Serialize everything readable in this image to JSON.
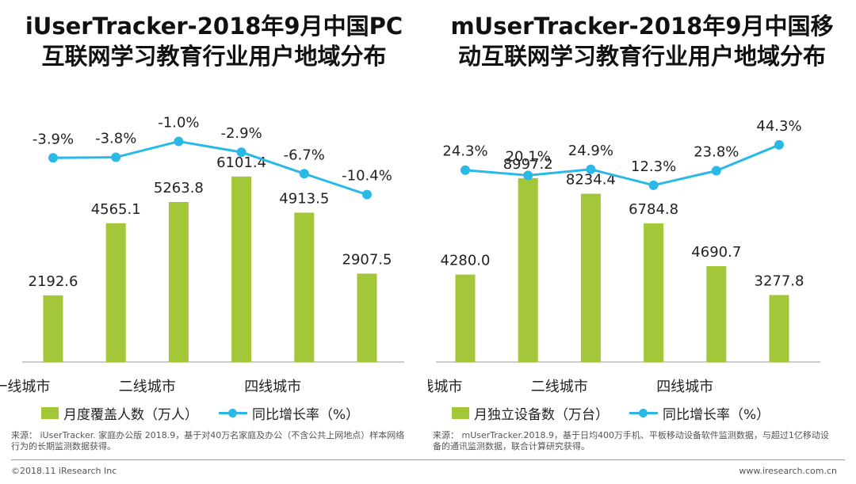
{
  "colors": {
    "bar": "#a4c639",
    "line": "#2ab9e6",
    "text": "#222222"
  },
  "panels": [
    {
      "title_line1": "iUserTracker-2018年9月中国PC",
      "title_line2": "互联网学习教育行业用户地域分布",
      "legend_bar": "月度覆盖人数（万人）",
      "legend_line": "同比增长率（%）",
      "source": "来源：  iUserTracker. 家庭办公版 2018.9，基于对40万名家庭及办公（不含公共上网地点）样本网络行为的长期监测数据获得。"
    },
    {
      "title_line1": "mUserTracker-2018年9月中国移",
      "title_line2": "动互联网学习教育行业用户地域分布",
      "legend_bar": "月独立设备数（万台）",
      "legend_line": "同比增长率（%）",
      "source": "来源：  mUserTracker.2018.9，基于日均400万手机、平板移动设备软件监测数据，与超过1亿移动设备的通讯监测数据，联合计算研究获得。"
    }
  ],
  "chart_data": [
    {
      "type": "bar",
      "title": "iUserTracker-2018年9月中国PC互联网学习教育行业用户地域分布",
      "categories": [
        "一线城市",
        "",
        "二线城市",
        "",
        "四线城市",
        ""
      ],
      "series": [
        {
          "name": "月度覆盖人数（万人）",
          "type": "bar",
          "values": [
            2192.6,
            4565.1,
            5263.8,
            6101.4,
            4913.5,
            2907.5
          ],
          "labels": [
            "2192.6",
            "4565.1",
            "5263.8",
            "6101.4",
            "4913.5",
            "2907.5"
          ]
        },
        {
          "name": "同比增长率（%）",
          "type": "line",
          "values": [
            -3.9,
            -3.8,
            -1.0,
            -2.9,
            -6.7,
            -10.4
          ],
          "labels": [
            "-3.9%",
            "-3.8%",
            "-1.0%",
            "-2.9%",
            "-6.7%",
            "-10.4%"
          ]
        }
      ],
      "bar_ylim": [
        0,
        8000
      ],
      "line_ylim": [
        -40,
        3
      ]
    },
    {
      "type": "bar",
      "title": "mUserTracker-2018年9月中国移动互联网学习教育行业用户地域分布",
      "categories": [
        "一线城市",
        "",
        "二线城市",
        "",
        "四线城市",
        ""
      ],
      "series": [
        {
          "name": "月独立设备数（万台）",
          "type": "bar",
          "values": [
            4280.0,
            8997.2,
            8234.4,
            6784.8,
            4690.7,
            3277.8
          ],
          "labels": [
            "4280.0",
            "8997.2",
            "8234.4",
            "6784.8",
            "4690.7",
            "3277.8"
          ]
        },
        {
          "name": "同比增长率（%）",
          "type": "line",
          "values": [
            24.3,
            20.1,
            24.9,
            12.3,
            23.8,
            44.3
          ],
          "labels": [
            "24.3%",
            "20.1%",
            "24.9%",
            "12.3%",
            "23.8%",
            "44.3%"
          ]
        }
      ],
      "bar_ylim": [
        0,
        11900
      ],
      "line_ylim": [
        -128,
        65
      ]
    }
  ],
  "footer": {
    "left": "©2018.11 iResearch Inc",
    "right": "www.iresearch.com.cn"
  }
}
